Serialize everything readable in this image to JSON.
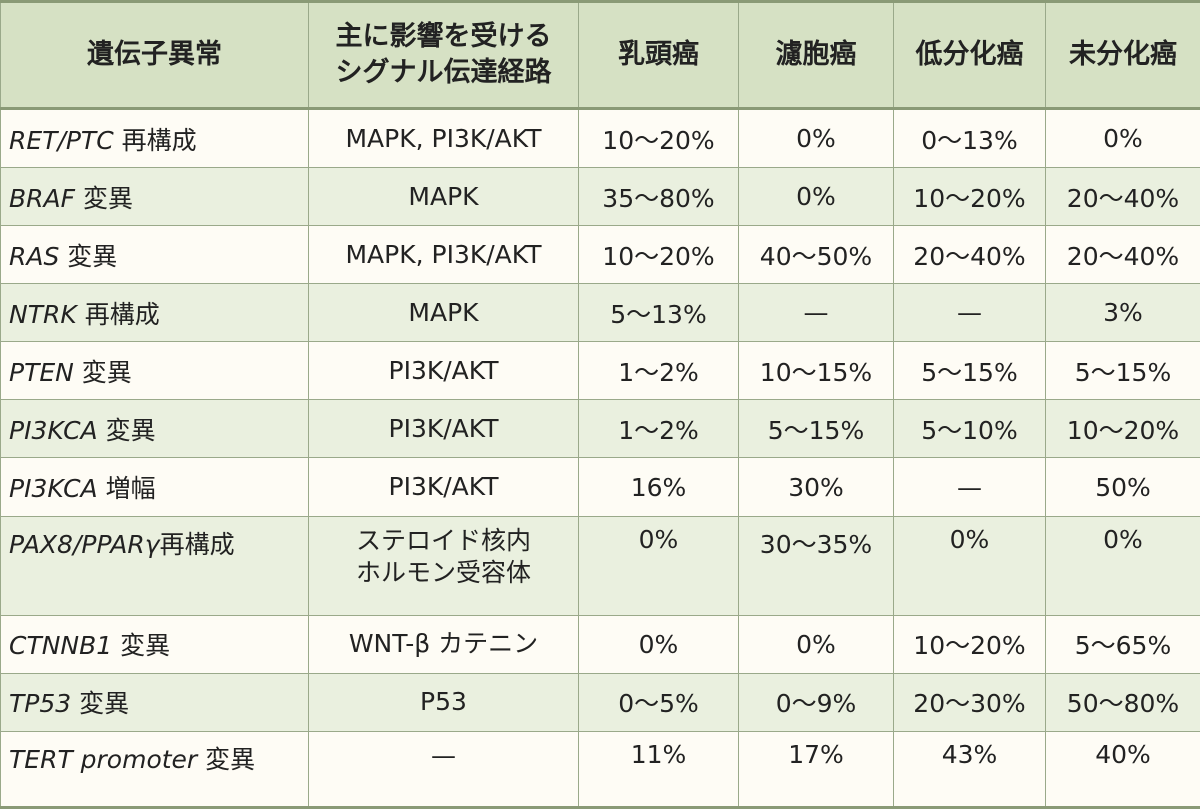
{
  "headers": {
    "gene": "遺伝子異常",
    "pathway_l1": "主に影響を受ける",
    "pathway_l2": "シグナル伝達経路",
    "papillary": "乳頭癌",
    "follicular": "濾胞癌",
    "poorly": "低分化癌",
    "anaplastic": "未分化癌"
  },
  "rows": [
    {
      "gene": "RET/PTC",
      "type": " 再構成",
      "pathway": "MAPK, PI3K/AKT",
      "pathway2": "",
      "papillary": "10〜20%",
      "follicular": "0%",
      "poorly": "0〜13%",
      "anaplastic": "0%"
    },
    {
      "gene": "BRAF",
      "type": " 変異",
      "pathway": "MAPK",
      "pathway2": "",
      "papillary": "35〜80%",
      "follicular": "0%",
      "poorly": "10〜20%",
      "anaplastic": "20〜40%"
    },
    {
      "gene": "RAS",
      "type": " 変異",
      "pathway": "MAPK, PI3K/AKT",
      "pathway2": "",
      "papillary": "10〜20%",
      "follicular": "40〜50%",
      "poorly": "20〜40%",
      "anaplastic": "20〜40%"
    },
    {
      "gene": "NTRK",
      "type": " 再構成",
      "pathway": "MAPK",
      "pathway2": "",
      "papillary": "5〜13%",
      "follicular": "—",
      "poorly": "—",
      "anaplastic": "3%"
    },
    {
      "gene": "PTEN",
      "type": " 変異",
      "pathway": "PI3K/AKT",
      "pathway2": "",
      "papillary": "1〜2%",
      "follicular": "10〜15%",
      "poorly": "5〜15%",
      "anaplastic": "5〜15%"
    },
    {
      "gene": "PI3KCA",
      "type": " 変異",
      "pathway": "PI3K/AKT",
      "pathway2": "",
      "papillary": "1〜2%",
      "follicular": "5〜15%",
      "poorly": "5〜10%",
      "anaplastic": "10〜20%"
    },
    {
      "gene": "PI3KCA",
      "type": " 増幅",
      "pathway": "PI3K/AKT",
      "pathway2": "",
      "papillary": "16%",
      "follicular": "30%",
      "poorly": "—",
      "anaplastic": "50%"
    },
    {
      "gene": "PAX8/PPARγ",
      "type": "再構成",
      "pathway": "ステロイド核内",
      "pathway2": "ホルモン受容体",
      "papillary": "0%",
      "follicular": "30〜35%",
      "poorly": "0%",
      "anaplastic": "0%"
    },
    {
      "gene": "CTNNB1",
      "type": " 変異",
      "pathway": "WNT-β カテニン",
      "pathway2": "",
      "papillary": "0%",
      "follicular": "0%",
      "poorly": "10〜20%",
      "anaplastic": "5〜65%"
    },
    {
      "gene": "TP53",
      "type": " 変異",
      "pathway": "P53",
      "pathway2": "",
      "papillary": "0〜5%",
      "follicular": "0〜9%",
      "poorly": "20〜30%",
      "anaplastic": "50〜80%"
    },
    {
      "gene": "TERT promoter",
      "type": " 変異",
      "pathway": "—",
      "pathway2": "",
      "papillary": "11%",
      "follicular": "17%",
      "poorly": "43%",
      "anaplastic": "40%"
    }
  ]
}
